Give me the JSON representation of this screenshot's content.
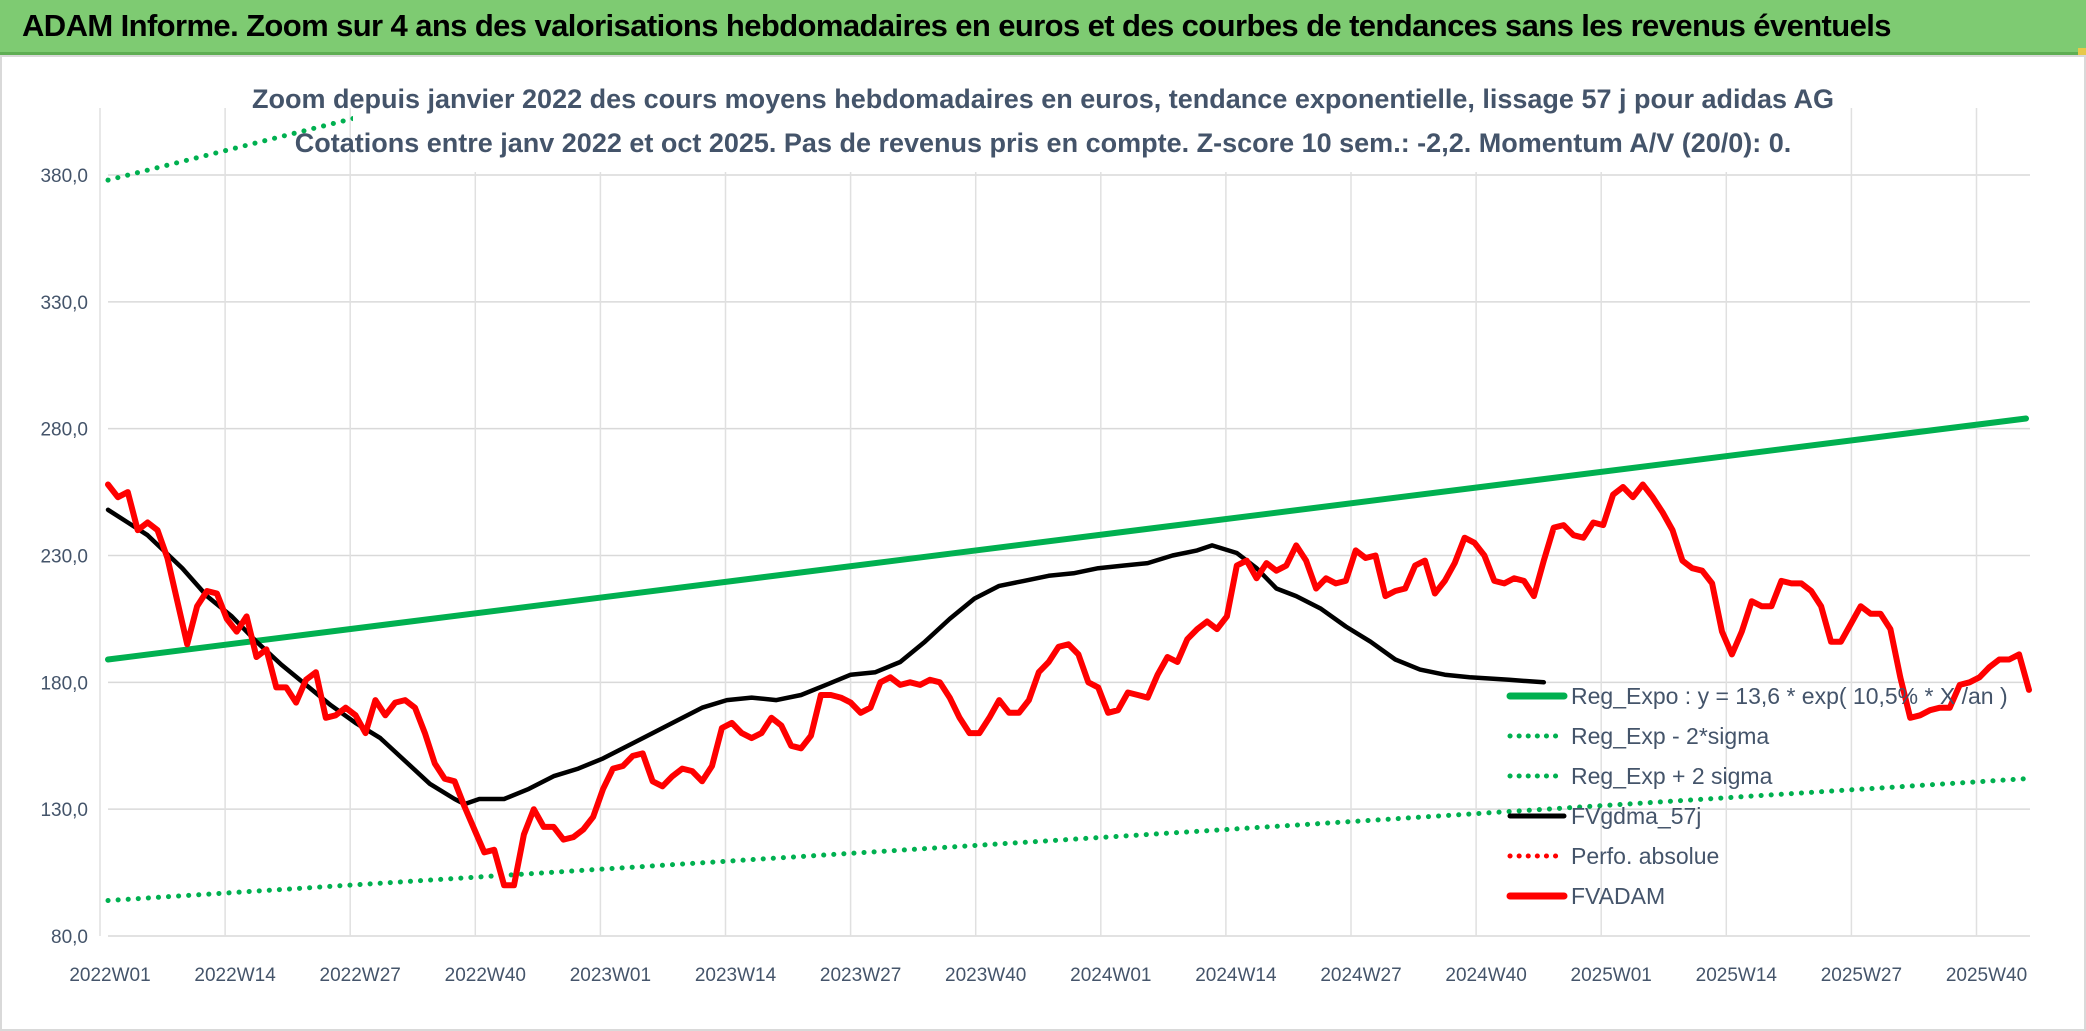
{
  "banner": {
    "title": "ADAM Informe. Zoom sur 4 ans des valorisations hebdomadaires en euros et des courbes de tendances sans les revenus éventuels",
    "color": "#7ecb72"
  },
  "chart_data": {
    "type": "line",
    "title": "Zoom depuis janvier 2022 des cours moyens hebdomadaires en euros, tendance exponentielle, lissage 57 j pour adidas AG",
    "subtitle": "Cotations entre janv 2022 et oct 2025. Pas de revenus pris en compte. Z-score 10 sem.: -2,2. Momentum A/V (20/0): 0.",
    "xlabel": "",
    "ylabel": "",
    "ylim": [
      80,
      400
    ],
    "yticks": [
      "80,0",
      "130,0",
      "180,0",
      "230,0",
      "280,0",
      "330,0",
      "380,0"
    ],
    "xticks": [
      "2022W01",
      "2022W14",
      "2022W27",
      "2022W40",
      "2023W01",
      "2023W14",
      "2023W27",
      "2023W40",
      "2024W01",
      "2024W14",
      "2024W27",
      "2024W40",
      "2025W01",
      "2025W14",
      "2025W27",
      "2025W40"
    ],
    "x_week_index_range": [
      0,
      200
    ],
    "grid": true,
    "legend_position": "bottom-right",
    "series": [
      {
        "name": "Reg_Expo : y = 13,6 * exp( 10,5% *  X /an )",
        "color": "#00b050",
        "style": "solid",
        "points": [
          [
            0,
            189
          ],
          [
            200,
            284
          ]
        ]
      },
      {
        "name": "Reg_Exp - 2*sigma",
        "color": "#00b050",
        "style": "dotted",
        "points": [
          [
            0,
            94
          ],
          [
            200,
            142
          ]
        ]
      },
      {
        "name": "Reg_Exp + 2 sigma",
        "color": "#00b050",
        "style": "dotted",
        "points": [
          [
            0,
            378
          ],
          [
            200,
            568
          ]
        ]
      },
      {
        "name": "FVgdma_57j",
        "color": "#000000",
        "style": "solid",
        "points": [
          [
            0,
            248
          ],
          [
            8,
            238
          ],
          [
            15,
            225
          ],
          [
            20,
            214
          ],
          [
            25,
            206
          ],
          [
            30,
            196
          ],
          [
            35,
            187
          ],
          [
            40,
            179
          ],
          [
            45,
            171
          ],
          [
            50,
            164
          ],
          [
            55,
            158
          ],
          [
            60,
            149
          ],
          [
            65,
            140
          ],
          [
            70,
            134
          ],
          [
            72,
            132
          ],
          [
            75,
            134
          ],
          [
            80,
            134
          ],
          [
            85,
            138
          ],
          [
            90,
            143
          ],
          [
            95,
            146
          ],
          [
            100,
            150
          ],
          [
            105,
            155
          ],
          [
            110,
            160
          ],
          [
            115,
            165
          ],
          [
            120,
            170
          ],
          [
            125,
            173
          ],
          [
            130,
            174
          ],
          [
            135,
            173
          ],
          [
            140,
            175
          ],
          [
            145,
            179
          ],
          [
            150,
            183
          ],
          [
            155,
            184
          ],
          [
            160,
            188
          ],
          [
            165,
            196
          ],
          [
            170,
            205
          ],
          [
            175,
            213
          ],
          [
            180,
            218
          ],
          [
            185,
            220
          ],
          [
            190,
            222
          ],
          [
            195,
            223
          ],
          [
            200,
            225
          ],
          [
            205,
            226
          ],
          [
            210,
            227
          ],
          [
            215,
            230
          ],
          [
            220,
            232
          ],
          [
            223,
            234
          ],
          [
            228,
            231
          ],
          [
            232,
            225
          ],
          [
            236,
            217
          ],
          [
            240,
            214
          ],
          [
            245,
            209
          ],
          [
            250,
            202
          ],
          [
            255,
            196
          ],
          [
            260,
            189
          ],
          [
            265,
            185
          ],
          [
            270,
            183
          ],
          [
            275,
            182
          ],
          [
            283,
            181
          ],
          [
            290,
            180
          ]
        ]
      },
      {
        "name": "Perfo. absolue",
        "color": "#ff0000",
        "style": "dotted",
        "points": []
      },
      {
        "name": "FVADAM",
        "color": "#ff0000",
        "style": "solid",
        "points": [
          [
            0,
            258
          ],
          [
            2,
            253
          ],
          [
            4,
            255
          ],
          [
            6,
            240
          ],
          [
            8,
            243
          ],
          [
            10,
            240
          ],
          [
            12,
            229
          ],
          [
            14,
            212
          ],
          [
            16,
            195
          ],
          [
            18,
            210
          ],
          [
            20,
            216
          ],
          [
            22,
            215
          ],
          [
            24,
            205
          ],
          [
            26,
            200
          ],
          [
            28,
            206
          ],
          [
            30,
            190
          ],
          [
            32,
            193
          ],
          [
            34,
            178
          ],
          [
            36,
            178
          ],
          [
            38,
            172
          ],
          [
            40,
            181
          ],
          [
            42,
            184
          ],
          [
            44,
            166
          ],
          [
            46,
            167
          ],
          [
            48,
            170
          ],
          [
            50,
            167
          ],
          [
            52,
            160
          ],
          [
            54,
            173
          ],
          [
            56,
            167
          ],
          [
            58,
            172
          ],
          [
            60,
            173
          ],
          [
            62,
            170
          ],
          [
            64,
            160
          ],
          [
            66,
            148
          ],
          [
            68,
            142
          ],
          [
            70,
            141
          ],
          [
            72,
            131
          ],
          [
            74,
            122
          ],
          [
            76,
            113
          ],
          [
            78,
            114
          ],
          [
            80,
            100
          ],
          [
            82,
            100
          ],
          [
            84,
            120
          ],
          [
            86,
            130
          ],
          [
            88,
            123
          ],
          [
            90,
            123
          ],
          [
            92,
            118
          ],
          [
            94,
            119
          ],
          [
            96,
            122
          ],
          [
            98,
            127
          ],
          [
            100,
            138
          ],
          [
            102,
            146
          ],
          [
            104,
            147
          ],
          [
            106,
            151
          ],
          [
            108,
            152
          ],
          [
            110,
            141
          ],
          [
            112,
            139
          ],
          [
            114,
            143
          ],
          [
            116,
            146
          ],
          [
            118,
            145
          ],
          [
            120,
            141
          ],
          [
            122,
            147
          ],
          [
            124,
            162
          ],
          [
            126,
            164
          ],
          [
            128,
            160
          ],
          [
            130,
            158
          ],
          [
            132,
            160
          ],
          [
            134,
            166
          ],
          [
            136,
            163
          ],
          [
            138,
            155
          ],
          [
            140,
            154
          ],
          [
            142,
            159
          ],
          [
            144,
            175
          ],
          [
            146,
            175
          ],
          [
            148,
            174
          ],
          [
            150,
            172
          ],
          [
            152,
            168
          ],
          [
            154,
            170
          ],
          [
            156,
            180
          ],
          [
            158,
            182
          ],
          [
            160,
            179
          ],
          [
            162,
            180
          ],
          [
            164,
            179
          ],
          [
            166,
            181
          ],
          [
            168,
            180
          ],
          [
            170,
            174
          ],
          [
            172,
            166
          ],
          [
            174,
            160
          ],
          [
            176,
            160
          ],
          [
            178,
            166
          ],
          [
            180,
            173
          ],
          [
            182,
            168
          ],
          [
            184,
            168
          ],
          [
            186,
            173
          ],
          [
            188,
            184
          ],
          [
            190,
            188
          ],
          [
            192,
            194
          ],
          [
            194,
            195
          ],
          [
            196,
            191
          ],
          [
            198,
            180
          ],
          [
            200,
            178
          ],
          [
            202,
            168
          ],
          [
            204,
            169
          ],
          [
            206,
            176
          ],
          [
            208,
            175
          ],
          [
            210,
            174
          ],
          [
            212,
            183
          ],
          [
            214,
            190
          ],
          [
            216,
            188
          ],
          [
            218,
            197
          ],
          [
            220,
            201
          ],
          [
            222,
            204
          ],
          [
            224,
            201
          ],
          [
            226,
            206
          ],
          [
            228,
            226
          ],
          [
            230,
            228
          ],
          [
            232,
            221
          ],
          [
            234,
            227
          ],
          [
            236,
            224
          ],
          [
            238,
            226
          ],
          [
            240,
            234
          ],
          [
            242,
            228
          ],
          [
            244,
            217
          ],
          [
            246,
            221
          ],
          [
            248,
            219
          ],
          [
            250,
            220
          ],
          [
            252,
            232
          ],
          [
            254,
            229
          ],
          [
            256,
            230
          ],
          [
            258,
            214
          ],
          [
            260,
            216
          ],
          [
            262,
            217
          ],
          [
            264,
            226
          ],
          [
            266,
            228
          ],
          [
            268,
            215
          ],
          [
            270,
            220
          ],
          [
            272,
            227
          ],
          [
            274,
            237
          ],
          [
            276,
            235
          ],
          [
            278,
            230
          ],
          [
            280,
            220
          ],
          [
            282,
            219
          ],
          [
            284,
            221
          ],
          [
            286,
            220
          ],
          [
            288,
            214
          ],
          [
            290,
            228
          ],
          [
            292,
            241
          ],
          [
            294,
            242
          ],
          [
            296,
            238
          ],
          [
            298,
            237
          ],
          [
            300,
            243
          ],
          [
            302,
            242
          ],
          [
            304,
            254
          ],
          [
            306,
            257
          ],
          [
            308,
            253
          ],
          [
            310,
            258
          ],
          [
            312,
            253
          ],
          [
            314,
            247
          ],
          [
            316,
            240
          ],
          [
            318,
            228
          ],
          [
            320,
            225
          ],
          [
            322,
            224
          ],
          [
            324,
            219
          ],
          [
            326,
            200
          ],
          [
            328,
            191
          ],
          [
            330,
            200
          ],
          [
            332,
            212
          ],
          [
            334,
            210
          ],
          [
            336,
            210
          ],
          [
            338,
            220
          ],
          [
            340,
            219
          ],
          [
            342,
            219
          ],
          [
            344,
            216
          ],
          [
            346,
            210
          ],
          [
            348,
            196
          ],
          [
            350,
            196
          ],
          [
            352,
            203
          ],
          [
            354,
            210
          ],
          [
            356,
            207
          ],
          [
            358,
            207
          ],
          [
            360,
            201
          ],
          [
            362,
            182
          ],
          [
            364,
            166
          ],
          [
            366,
            167
          ],
          [
            368,
            169
          ],
          [
            370,
            170
          ],
          [
            372,
            170
          ],
          [
            374,
            179
          ],
          [
            376,
            180
          ],
          [
            378,
            182
          ],
          [
            380,
            186
          ],
          [
            382,
            189
          ],
          [
            384,
            189
          ],
          [
            386,
            191
          ],
          [
            388,
            177
          ]
        ]
      }
    ]
  }
}
